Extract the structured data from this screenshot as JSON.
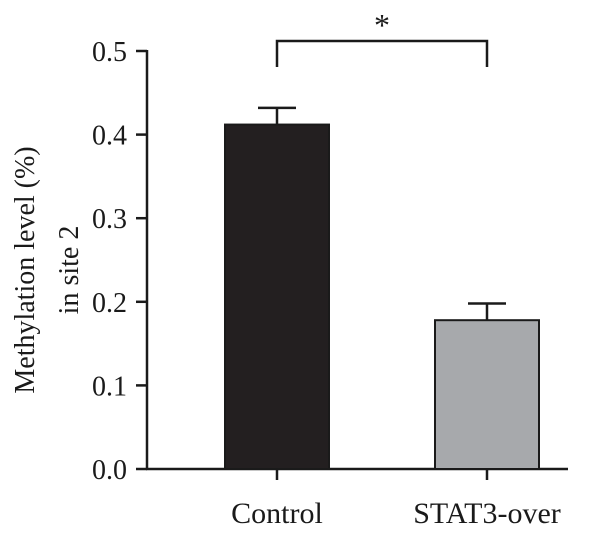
{
  "chart_data": {
    "type": "bar",
    "categories": [
      "Control",
      "STAT3-over"
    ],
    "values": [
      0.412,
      0.178
    ],
    "errors": [
      0.02,
      0.02
    ],
    "bar_colors": [
      "#231f20",
      "#a7a9ac"
    ],
    "ylabel_line1": "Methylation level (%)",
    "ylabel_line2": "in site 2",
    "yticks": [
      "0.0",
      "0.1",
      "0.2",
      "0.3",
      "0.4",
      "0.5"
    ],
    "ylim": [
      0,
      0.5
    ],
    "significance": {
      "between": [
        "Control",
        "STAT3-over"
      ],
      "label": "*"
    },
    "grid": false
  }
}
